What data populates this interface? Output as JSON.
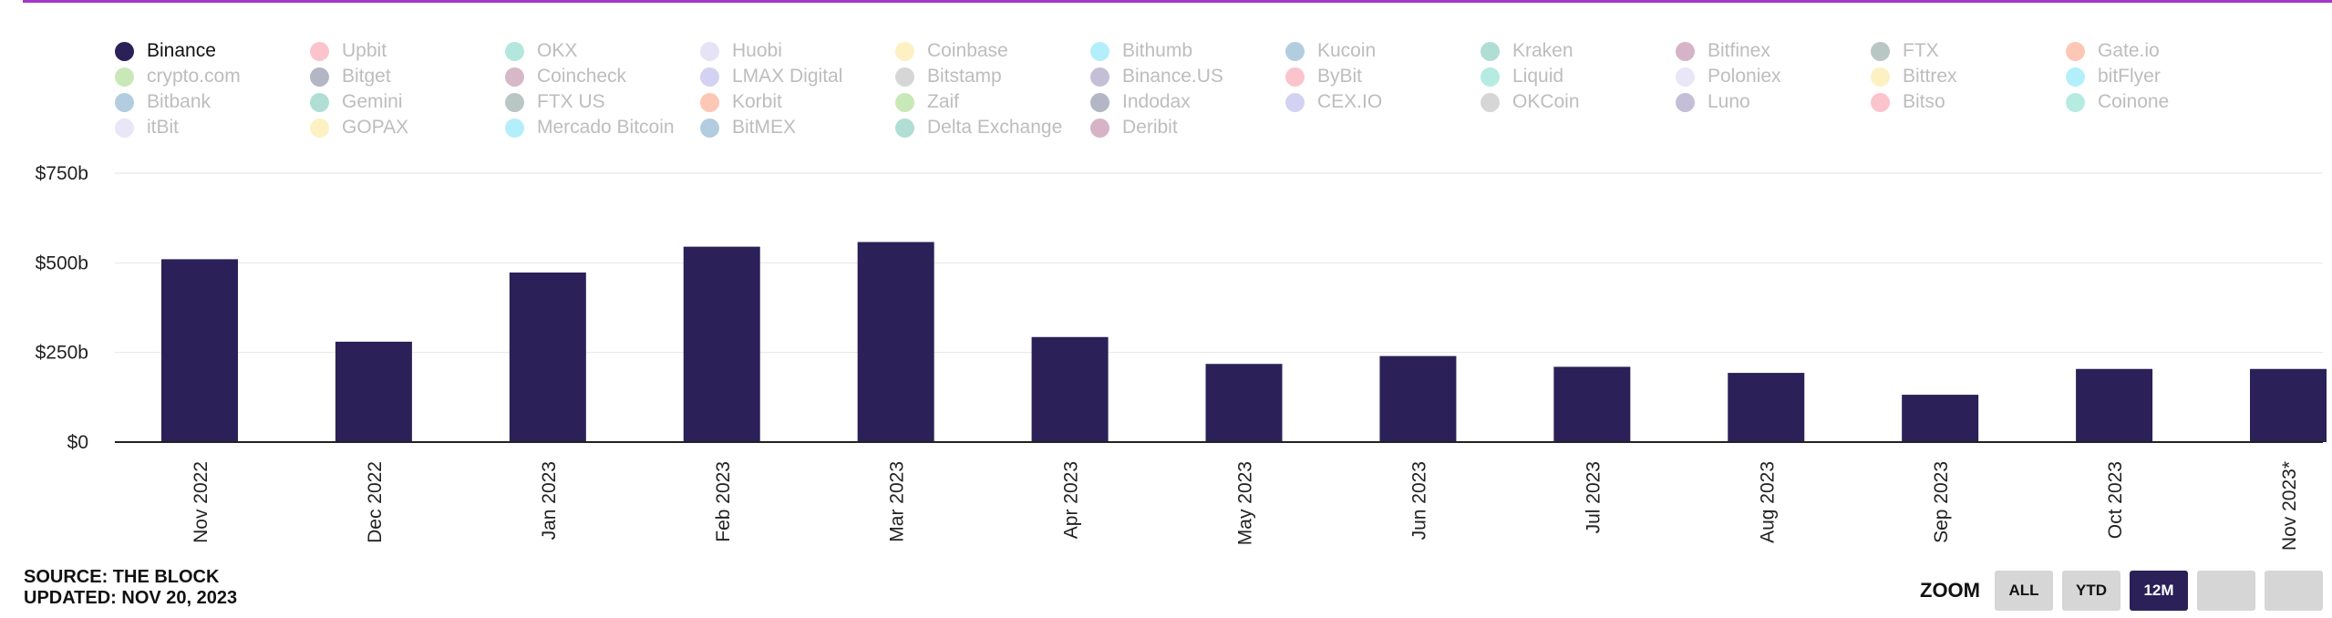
{
  "legend": {
    "items": [
      {
        "label": "Binance",
        "color": "#2b2158",
        "active": true
      },
      {
        "label": "Upbit",
        "color": "#fbc3cc"
      },
      {
        "label": "OKX",
        "color": "#b3e6dc"
      },
      {
        "label": "Huobi",
        "color": "#e6e3f7"
      },
      {
        "label": "Coinbase",
        "color": "#fdf0c2"
      },
      {
        "label": "Bithumb",
        "color": "#b3effb"
      },
      {
        "label": "Kucoin",
        "color": "#b3cde0"
      },
      {
        "label": "Kraken",
        "color": "#b0ded5"
      },
      {
        "label": "Bitfinex",
        "color": "#d7b3c8"
      },
      {
        "label": "FTX",
        "color": "#b8c6c4"
      },
      {
        "label": "Gate.io",
        "color": "#fdc7b6"
      },
      {
        "label": "crypto.com",
        "color": "#c9e8b8"
      },
      {
        "label": "Bitget",
        "color": "#b3b6c4"
      },
      {
        "label": "Coincheck",
        "color": "#d7b8c8"
      },
      {
        "label": "LMAX Digital",
        "color": "#d4d2f2"
      },
      {
        "label": "Bitstamp",
        "color": "#d6d6d6"
      },
      {
        "label": "Binance.US",
        "color": "#c4bfd6"
      },
      {
        "label": "ByBit",
        "color": "#fbc3cc"
      },
      {
        "label": "Liquid",
        "color": "#b6ebe2"
      },
      {
        "label": "Poloniex",
        "color": "#e9e6f7"
      },
      {
        "label": "Bittrex",
        "color": "#fdf0c2"
      },
      {
        "label": "bitFlyer",
        "color": "#b3effb"
      },
      {
        "label": "Bitbank",
        "color": "#b3cde0"
      },
      {
        "label": "Gemini",
        "color": "#b0ded5"
      },
      {
        "label": "FTX US",
        "color": "#b8c6c4"
      },
      {
        "label": "Korbit",
        "color": "#fdc7b6"
      },
      {
        "label": "Zaif",
        "color": "#c9e8b8"
      },
      {
        "label": "Indodax",
        "color": "#b3b6c4"
      },
      {
        "label": "CEX.IO",
        "color": "#d4d2f2"
      },
      {
        "label": "OKCoin",
        "color": "#d6d6d6"
      },
      {
        "label": "Luno",
        "color": "#c4bfd6"
      },
      {
        "label": "Bitso",
        "color": "#fbc3cc"
      },
      {
        "label": "Coinone",
        "color": "#b6ebe2"
      },
      {
        "label": "itBit",
        "color": "#e9e6f7"
      },
      {
        "label": "GOPAX",
        "color": "#fdf0c2"
      },
      {
        "label": "Mercado Bitcoin",
        "color": "#b3effb"
      },
      {
        "label": "BitMEX",
        "color": "#b3cde0"
      },
      {
        "label": "Delta Exchange",
        "color": "#b0ded5"
      },
      {
        "label": "Deribit",
        "color": "#d7b3c8"
      }
    ]
  },
  "chart_data": {
    "type": "bar",
    "categories": [
      "Nov 2022",
      "Dec 2022",
      "Jan 2023",
      "Feb 2023",
      "Mar 2023",
      "Apr 2023",
      "May 2023",
      "Jun 2023",
      "Jul 2023",
      "Aug 2023",
      "Sep 2023",
      "Oct 2023",
      "Nov 2023*"
    ],
    "series": [
      {
        "name": "Binance",
        "color": "#2b2158",
        "values": [
          510,
          280,
          473,
          545,
          558,
          293,
          218,
          240,
          210,
          193,
          132,
          204,
          204
        ]
      }
    ],
    "yticks": [
      "$0",
      "$250b",
      "$500b",
      "$750b"
    ],
    "ytick_values": [
      0,
      250,
      500,
      750
    ],
    "ylim": [
      0,
      750
    ],
    "grid": true,
    "legend_position": "top"
  },
  "footer": {
    "source": "SOURCE: THE BLOCK",
    "updated": "UPDATED: NOV 20, 2023"
  },
  "zoom": {
    "label": "ZOOM",
    "buttons": [
      {
        "label": "ALL",
        "active": false
      },
      {
        "label": "YTD",
        "active": false
      },
      {
        "label": "12M",
        "active": true
      },
      {
        "label": "",
        "active": false
      },
      {
        "label": "",
        "active": false
      }
    ]
  }
}
